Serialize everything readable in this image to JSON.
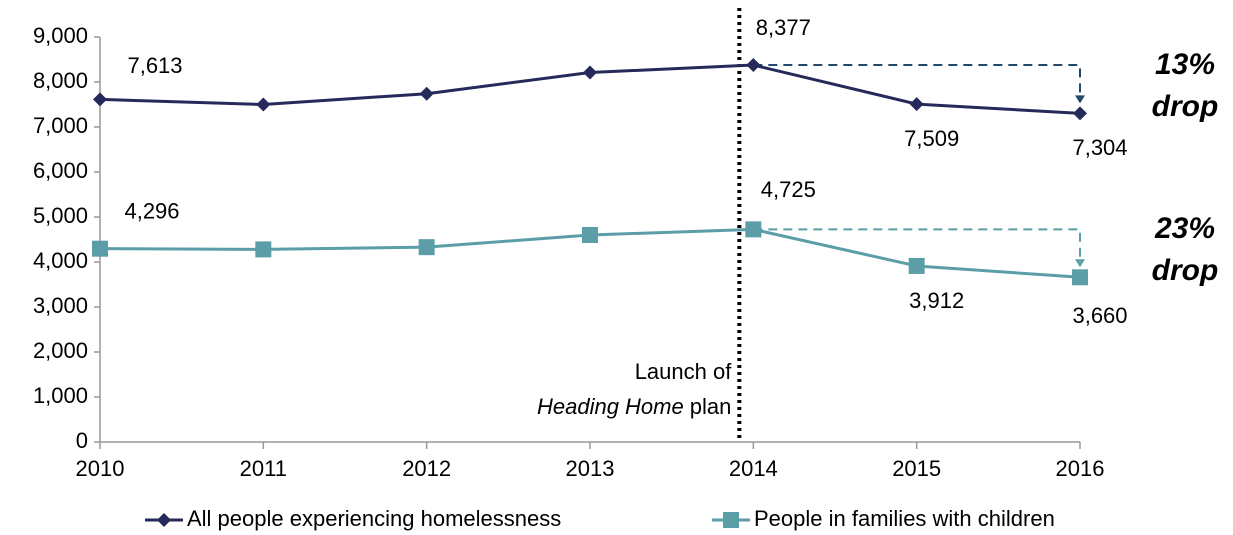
{
  "chart_data": {
    "type": "line",
    "x": [
      2010,
      2011,
      2012,
      2013,
      2014,
      2015,
      2016
    ],
    "xlim": [
      2010,
      2016
    ],
    "xticks": [
      2010,
      2011,
      2012,
      2013,
      2014,
      2015,
      2016
    ],
    "ylim": [
      0,
      9000
    ],
    "yticks": [
      0,
      {
        "value": 1000,
        "label": "1,000"
      },
      {
        "value": 2000,
        "label": "2,000"
      },
      {
        "value": 3000,
        "label": "3,000"
      },
      {
        "value": 4000,
        "label": "4,000"
      },
      {
        "value": 5000,
        "label": "5,000"
      },
      {
        "value": 6000,
        "label": "6,000"
      },
      {
        "value": 7000,
        "label": "7,000"
      },
      {
        "value": 8000,
        "label": "8,000"
      },
      {
        "value": 9000,
        "label": "9,000"
      }
    ],
    "series": [
      {
        "name": "All people experiencing homelessness",
        "color": "#262a5a",
        "marker": "diamond",
        "label_color": "#2f5473",
        "values": [
          7613,
          7500,
          7740,
          8210,
          8377,
          7509,
          7304
        ],
        "value_labels": [
          "7,613",
          null,
          null,
          null,
          "8,377",
          "7,509",
          "7,304"
        ]
      },
      {
        "name": "People in families with children",
        "color": "#5b9ea8",
        "marker": "square",
        "label_color": "#5b9ea8",
        "values": [
          4296,
          4280,
          4330,
          4600,
          4725,
          3912,
          3660
        ],
        "value_labels": [
          "4,296",
          null,
          null,
          null,
          "4,725",
          "3,912",
          "3,660"
        ]
      }
    ],
    "event": {
      "x": 2014,
      "line1": "Launch of",
      "italic": "Heading Home",
      "rest": "plan"
    },
    "drops": [
      {
        "percent": "13%",
        "word": "drop",
        "color": "#1f4a6e"
      },
      {
        "percent": "23%",
        "word": "drop",
        "color": "#5b9ea8"
      }
    ]
  }
}
